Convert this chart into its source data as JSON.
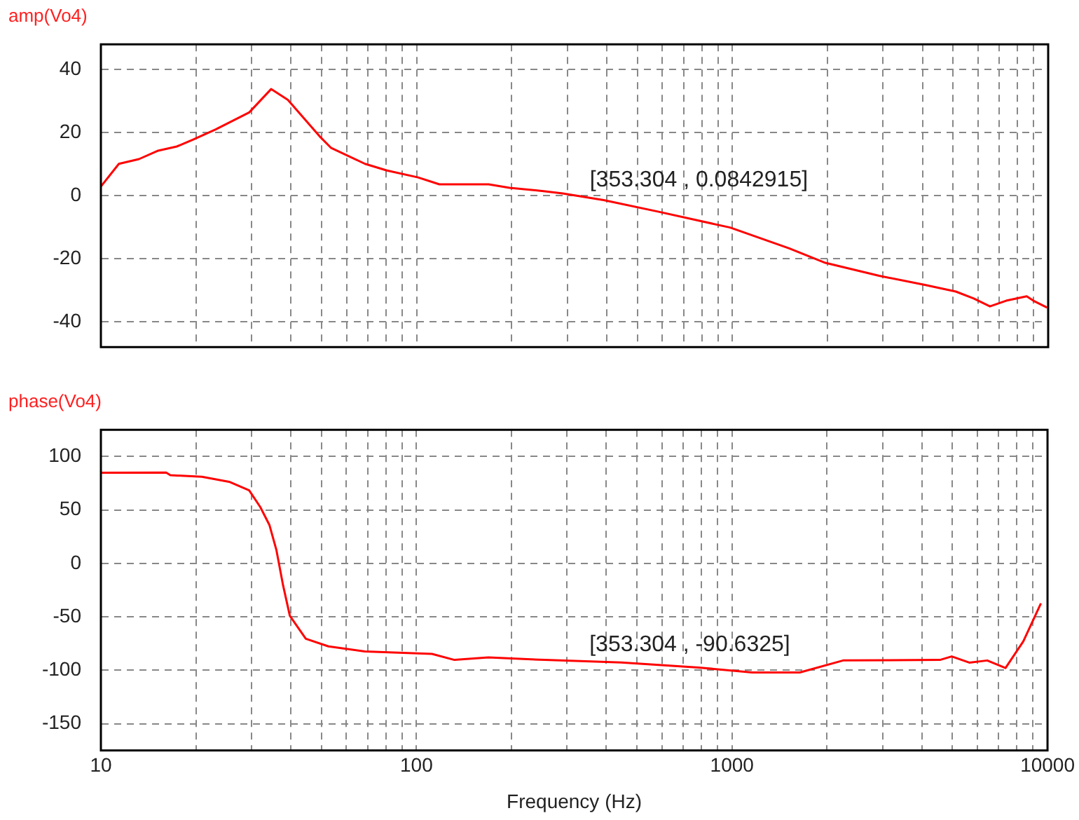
{
  "chart_data": [
    {
      "type": "line",
      "title": "amp(Vo4)",
      "xlim": [
        10,
        10000
      ],
      "ylim": [
        -48,
        48
      ],
      "log": "x",
      "grid": true,
      "marker": "none",
      "tick_labels": "y",
      "xticks": [
        10,
        {
          "value": 20,
          "label": null
        },
        {
          "value": 30,
          "label": null
        },
        {
          "value": 40,
          "label": null
        },
        {
          "value": 50,
          "label": null
        },
        {
          "value": 60,
          "label": null
        },
        {
          "value": 70,
          "label": null
        },
        {
          "value": 80,
          "label": null
        },
        {
          "value": 90,
          "label": null
        },
        100,
        {
          "value": 200,
          "label": null
        },
        {
          "value": 300,
          "label": null
        },
        {
          "value": 400,
          "label": null
        },
        {
          "value": 500,
          "label": null
        },
        {
          "value": 600,
          "label": null
        },
        {
          "value": 700,
          "label": null
        },
        {
          "value": 800,
          "label": null
        },
        {
          "value": 900,
          "label": null
        },
        1000,
        {
          "value": 2000,
          "label": null
        },
        {
          "value": 3000,
          "label": null
        },
        {
          "value": 4000,
          "label": null
        },
        {
          "value": 5000,
          "label": null
        },
        {
          "value": 6000,
          "label": null
        },
        {
          "value": 7000,
          "label": null
        },
        {
          "value": 8000,
          "label": null
        },
        {
          "value": 9000,
          "label": null
        },
        10000
      ],
      "yticks": [
        -40,
        -20,
        0,
        20,
        40
      ],
      "series": [
        {
          "color": "#ff0000",
          "x": [
            10,
            11.4,
            13.2,
            15.1,
            17.4,
            19.6,
            23.1,
            29.5,
            34.6,
            39.1,
            49.3,
            53.5,
            68.6,
            80.5,
            101,
            118,
            169,
            197,
            255,
            290,
            391,
            584,
            983,
            1513,
            1970,
            2915,
            4070,
            5100,
            5810,
            6540,
            7360,
            8550,
            8980,
            9920
          ],
          "values": [
            2.9,
            10.1,
            11.6,
            14.2,
            15.6,
            17.8,
            21,
            26.4,
            33.8,
            30.4,
            18.8,
            15.2,
            10.1,
            8,
            5.8,
            3.6,
            3.6,
            2.5,
            1.4,
            0.7,
            -1.4,
            -5.1,
            -10.1,
            -16.7,
            -21.3,
            -25.4,
            -28.3,
            -30.4,
            -32.6,
            -35.1,
            -33.3,
            -31.9,
            -33.3,
            -35.5
          ]
        }
      ],
      "annotations": [
        {
          "text": "[353.304 , 0.0842915]",
          "x": 353.304,
          "y": 0.0842915
        }
      ]
    },
    {
      "type": "line",
      "title": "phase(Vo4)",
      "xlabel": "Frequency (Hz)",
      "xlim": [
        10,
        10000
      ],
      "ylim": [
        -175,
        125
      ],
      "log": "x",
      "grid": true,
      "marker": "none",
      "xticks": [
        10,
        {
          "value": 20,
          "label": null
        },
        {
          "value": 30,
          "label": null
        },
        {
          "value": 40,
          "label": null
        },
        {
          "value": 50,
          "label": null
        },
        {
          "value": 60,
          "label": null
        },
        {
          "value": 70,
          "label": null
        },
        {
          "value": 80,
          "label": null
        },
        {
          "value": 90,
          "label": null
        },
        100,
        {
          "value": 200,
          "label": null
        },
        {
          "value": 300,
          "label": null
        },
        {
          "value": 400,
          "label": null
        },
        {
          "value": 500,
          "label": null
        },
        {
          "value": 600,
          "label": null
        },
        {
          "value": 700,
          "label": null
        },
        {
          "value": 800,
          "label": null
        },
        {
          "value": 900,
          "label": null
        },
        1000,
        {
          "value": 2000,
          "label": null
        },
        {
          "value": 3000,
          "label": null
        },
        {
          "value": 4000,
          "label": null
        },
        {
          "value": 5000,
          "label": null
        },
        {
          "value": 6000,
          "label": null
        },
        {
          "value": 7000,
          "label": null
        },
        {
          "value": 8000,
          "label": null
        },
        {
          "value": 9000,
          "label": null
        },
        10000
      ],
      "yticks": [
        -150,
        -100,
        -50,
        0,
        50,
        100
      ],
      "series": [
        {
          "color": "#ff0000",
          "x": [
            10,
            16.1,
            16.6,
            20.9,
            25.5,
            29.5,
            32,
            34.2,
            36,
            37.8,
            39.7,
            44.6,
            52.6,
            68.6,
            112,
            132,
            169,
            255,
            446,
            785,
            1160,
            1640,
            2250,
            4560,
            4970,
            5650,
            6440,
            7360,
            8380,
            9530
          ],
          "values": [
            84.8,
            85,
            82.5,
            81,
            76.3,
            68.3,
            52.7,
            36,
            12.4,
            -20.7,
            -49,
            -70.5,
            -77.6,
            -82.3,
            -84.7,
            -90.3,
            -88,
            -90.3,
            -92.7,
            -97.4,
            -102.1,
            -102,
            -90.8,
            -90.3,
            -87,
            -92.8,
            -90.8,
            -97.9,
            -72.9,
            -37.3
          ]
        }
      ],
      "annotations": [
        {
          "text": "[353.304 , -90.6325]",
          "x": 353.304,
          "y": -90.6325
        }
      ]
    }
  ]
}
